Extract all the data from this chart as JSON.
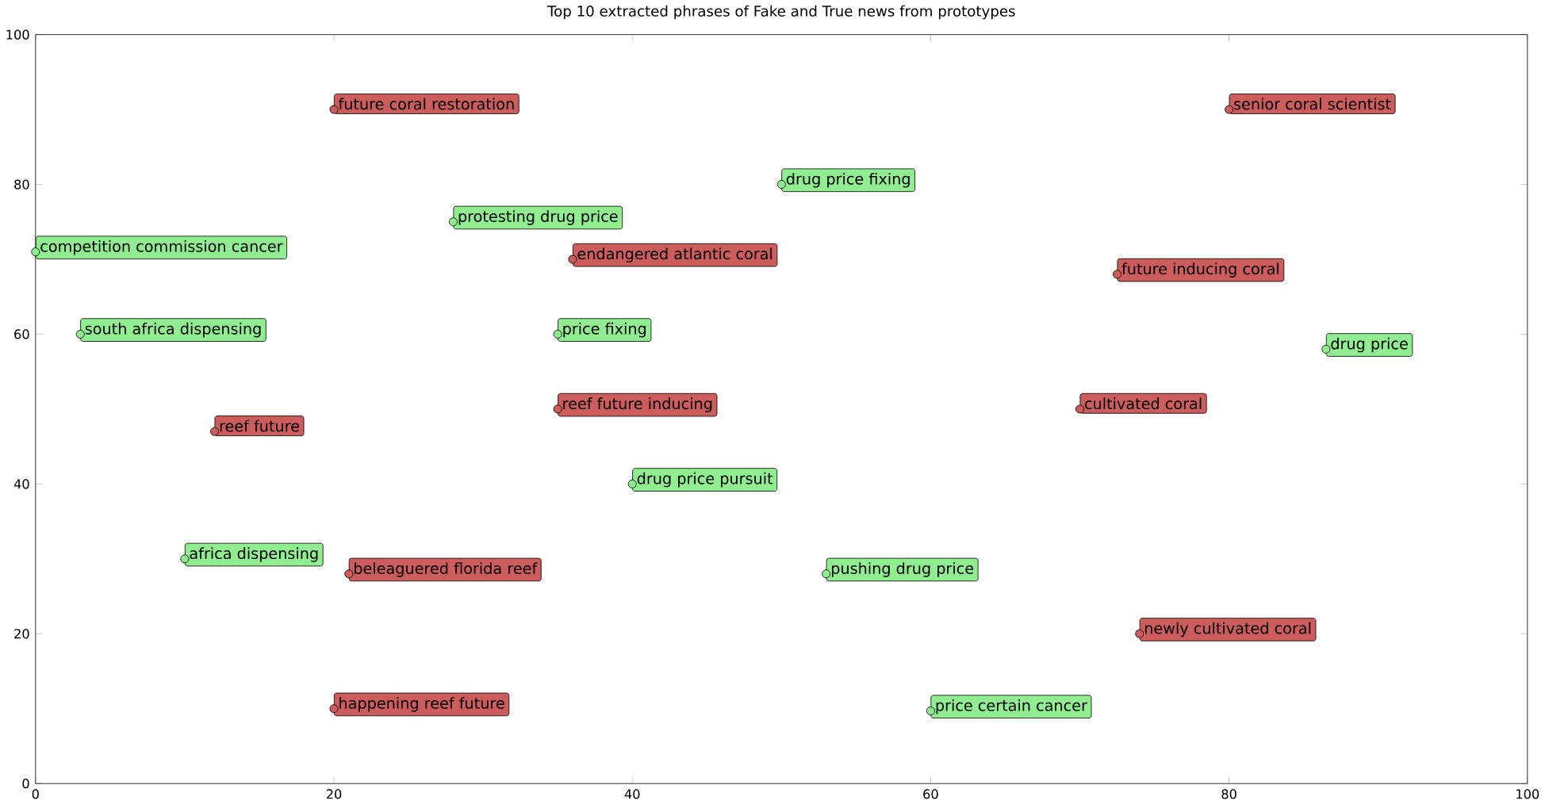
{
  "chart_data": {
    "type": "scatter",
    "title": "Top 10 extracted phrases of Fake and True news from prototypes",
    "xlim": [
      0,
      100
    ],
    "ylim": [
      0,
      100
    ],
    "xticks": [
      0,
      20,
      40,
      60,
      80,
      100
    ],
    "yticks": [
      0,
      20,
      40,
      60,
      80,
      100
    ],
    "grid": false,
    "marker": "circle",
    "series": [
      {
        "color": "#cd5c5c",
        "x": [
          20,
          80,
          36,
          72.5,
          12,
          35,
          70,
          21,
          74,
          20
        ],
        "values": [
          90,
          90,
          70,
          68,
          47,
          50,
          50,
          28,
          20,
          10
        ],
        "value_labels": [
          "future coral restoration",
          "senior coral scientist",
          "endangered atlantic coral",
          "future inducing coral",
          "reef future",
          "reef future inducing",
          "cultivated coral",
          "beleaguered florida reef",
          "newly cultivated coral",
          "happening reef future"
        ]
      },
      {
        "color": "#90ee90",
        "x": [
          0,
          28,
          50,
          3,
          35,
          86.5,
          10,
          40,
          53,
          60
        ],
        "values": [
          71,
          75,
          80,
          60,
          60,
          58,
          30,
          40,
          28,
          9.7
        ],
        "value_labels": [
          "competition commission cancer",
          "protesting drug price",
          "drug price fixing",
          "south africa dispensing",
          "price fixing",
          "drug price",
          "africa dispensing",
          "drug price pursuit",
          "pushing drug price",
          "price certain cancer"
        ]
      }
    ]
  }
}
